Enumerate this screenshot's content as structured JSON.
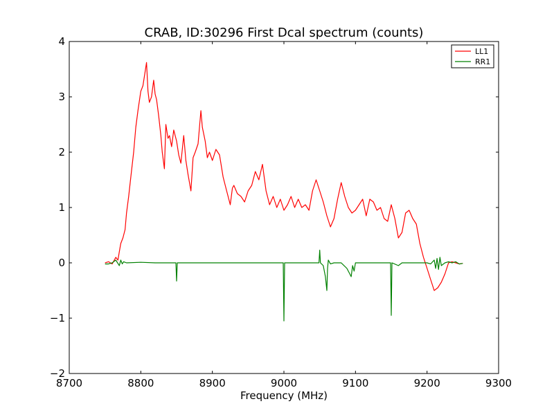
{
  "chart_data": {
    "type": "line",
    "title": "CRAB, ID:30296 First Dcal spectrum (counts)",
    "xlabel": "Frequency (MHz)",
    "ylabel": "",
    "xlim": [
      8700,
      9300
    ],
    "ylim": [
      -2,
      4
    ],
    "x_ticks": [
      8700,
      8800,
      8900,
      9000,
      9100,
      9200,
      9300
    ],
    "y_ticks": [
      -2,
      -1,
      0,
      1,
      2,
      3,
      4
    ],
    "x_tick_labels": [
      "8700",
      "8800",
      "8900",
      "9000",
      "9100",
      "9200",
      "9300"
    ],
    "y_tick_labels": [
      "−2",
      "−1",
      "0",
      "1",
      "2",
      "3",
      "4"
    ],
    "grid": false,
    "legend_position": "top-right",
    "series": [
      {
        "name": "LL1",
        "color": "#ff0000",
        "x": [
          8750,
          8755,
          8760,
          8765,
          8768,
          8770,
          8772,
          8775,
          8778,
          8780,
          8783,
          8786,
          8790,
          8793,
          8796,
          8800,
          8803,
          8806,
          8808,
          8810,
          8812,
          8815,
          8818,
          8820,
          8822,
          8825,
          8828,
          8830,
          8833,
          8835,
          8838,
          8840,
          8843,
          8846,
          8850,
          8853,
          8856,
          8860,
          8863,
          8866,
          8870,
          8873,
          8876,
          8880,
          8884,
          8886,
          8890,
          8893,
          8896,
          8900,
          8905,
          8910,
          8915,
          8920,
          8925,
          8928,
          8930,
          8935,
          8940,
          8945,
          8950,
          8955,
          8960,
          8965,
          8970,
          8975,
          8980,
          8985,
          8990,
          8995,
          9000,
          9005,
          9010,
          9015,
          9020,
          9025,
          9030,
          9035,
          9040,
          9045,
          9050,
          9055,
          9060,
          9065,
          9070,
          9075,
          9080,
          9085,
          9090,
          9095,
          9100,
          9105,
          9110,
          9115,
          9120,
          9125,
          9130,
          9135,
          9140,
          9145,
          9150,
          9155,
          9160,
          9165,
          9170,
          9175,
          9180,
          9185,
          9190,
          9195,
          9200,
          9205,
          9210,
          9215,
          9220,
          9225,
          9230,
          9235,
          9240,
          9245,
          9250
        ],
        "values": [
          0.0,
          0.02,
          -0.02,
          0.1,
          0.05,
          0.2,
          0.35,
          0.45,
          0.6,
          0.9,
          1.2,
          1.55,
          2.0,
          2.45,
          2.75,
          3.1,
          3.2,
          3.45,
          3.62,
          3.1,
          2.9,
          3.0,
          3.3,
          3.05,
          2.95,
          2.65,
          2.3,
          2.0,
          1.7,
          2.5,
          2.25,
          2.3,
          2.1,
          2.4,
          2.2,
          1.95,
          1.8,
          2.3,
          1.85,
          1.6,
          1.3,
          1.9,
          2.0,
          2.15,
          2.75,
          2.45,
          2.2,
          1.9,
          2.0,
          1.85,
          2.05,
          1.95,
          1.55,
          1.3,
          1.05,
          1.35,
          1.4,
          1.25,
          1.2,
          1.1,
          1.3,
          1.4,
          1.65,
          1.5,
          1.78,
          1.3,
          1.05,
          1.2,
          1.0,
          1.15,
          0.95,
          1.05,
          1.2,
          1.0,
          1.15,
          1.0,
          1.05,
          0.95,
          1.3,
          1.5,
          1.3,
          1.1,
          0.85,
          0.65,
          0.8,
          1.15,
          1.45,
          1.2,
          1.0,
          0.9,
          0.95,
          1.05,
          1.15,
          0.85,
          1.15,
          1.1,
          0.95,
          1.0,
          0.8,
          0.75,
          1.05,
          0.8,
          0.45,
          0.55,
          0.9,
          0.95,
          0.8,
          0.7,
          0.35,
          0.1,
          -0.1,
          -0.3,
          -0.5,
          -0.45,
          -0.35,
          -0.2,
          0.0,
          0.02,
          0.0,
          -0.02,
          -0.01
        ]
      },
      {
        "name": "RR1",
        "color": "#008000",
        "x": [
          8750,
          8755,
          8760,
          8765,
          8770,
          8772,
          8774,
          8776,
          8780,
          8800,
          8820,
          8840,
          8849,
          8850,
          8851,
          8860,
          8880,
          8900,
          8920,
          8940,
          8960,
          8980,
          8999,
          9000,
          9001,
          9020,
          9040,
          9049,
          9050,
          9051,
          9055,
          9058,
          9060,
          9061,
          9062,
          9065,
          9070,
          9080,
          9088,
          9092,
          9094,
          9096,
          9098,
          9100,
          9120,
          9140,
          9149,
          9150,
          9151,
          9160,
          9165,
          9170,
          9180,
          9190,
          9200,
          9205,
          9210,
          9212,
          9214,
          9216,
          9218,
          9220,
          9225,
          9230,
          9235,
          9240,
          9245,
          9250
        ],
        "values": [
          -0.02,
          -0.02,
          0.0,
          0.05,
          -0.05,
          0.05,
          -0.02,
          0.02,
          0.0,
          0.01,
          0.0,
          0.0,
          0.0,
          -0.33,
          0.0,
          0.0,
          0.0,
          0.0,
          0.0,
          0.0,
          0.0,
          0.0,
          0.0,
          -1.05,
          0.0,
          0.0,
          0.0,
          0.0,
          0.23,
          0.0,
          -0.05,
          -0.25,
          -0.5,
          -0.1,
          0.05,
          -0.02,
          0.0,
          0.0,
          -0.1,
          -0.2,
          -0.25,
          -0.05,
          -0.15,
          0.0,
          0.0,
          0.0,
          0.0,
          -0.95,
          0.0,
          -0.05,
          0.0,
          0.0,
          0.0,
          0.0,
          0.0,
          -0.02,
          0.05,
          -0.1,
          0.08,
          -0.12,
          0.1,
          -0.05,
          0.0,
          0.02,
          0.0,
          0.02,
          -0.02,
          -0.01
        ]
      }
    ]
  }
}
